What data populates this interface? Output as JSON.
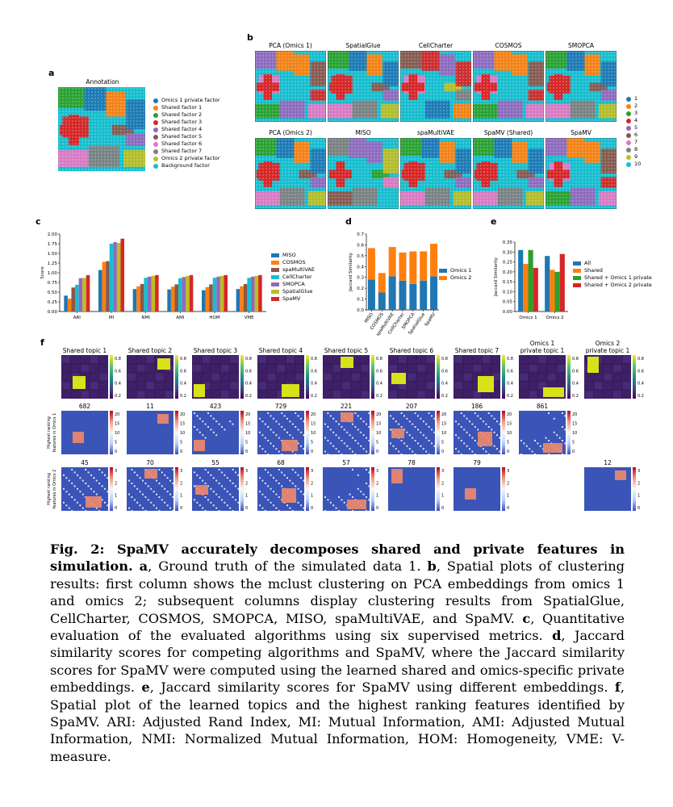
{
  "panel_letters": {
    "a": "a",
    "b": "b",
    "c": "c",
    "d": "d",
    "e": "e",
    "f": "f"
  },
  "panel_a": {
    "title": "Annotation",
    "legend": [
      {
        "label": "Omics 1 private factor",
        "color": "#1f77b4"
      },
      {
        "label": "Shared factor 1",
        "color": "#ff7f0e"
      },
      {
        "label": "Shared factor 2",
        "color": "#2ca02c"
      },
      {
        "label": "Shared factor 3",
        "color": "#d62728"
      },
      {
        "label": "Shared factor 4",
        "color": "#9467bd"
      },
      {
        "label": "Shared factor 5",
        "color": "#8c564b"
      },
      {
        "label": "Shared factor 6",
        "color": "#e377c2"
      },
      {
        "label": "Shared factor 7",
        "color": "#7f7f7f"
      },
      {
        "label": "Omics 2 private factor",
        "color": "#bcbd22"
      },
      {
        "label": "Background factor",
        "color": "#17becf"
      }
    ]
  },
  "panel_b": {
    "row1": [
      "PCA (Omics 1)",
      "SpatialGlue",
      "CellCharter",
      "COSMOS",
      "SMOPCA"
    ],
    "row2": [
      "PCA (Omics 2)",
      "MISO",
      "spaMultiVAE",
      "SpaMV (Shared)",
      "SpaMV"
    ],
    "legend": [
      {
        "label": "1",
        "color": "#1f77b4"
      },
      {
        "label": "2",
        "color": "#ff7f0e"
      },
      {
        "label": "3",
        "color": "#2ca02c"
      },
      {
        "label": "4",
        "color": "#d62728"
      },
      {
        "label": "5",
        "color": "#9467bd"
      },
      {
        "label": "6",
        "color": "#8c564b"
      },
      {
        "label": "7",
        "color": "#e377c2"
      },
      {
        "label": "8",
        "color": "#7f7f7f"
      },
      {
        "label": "9",
        "color": "#bcbd22"
      },
      {
        "label": "10",
        "color": "#17becf"
      }
    ]
  },
  "panel_f": {
    "row1_titles": [
      "Shared topic 1",
      "Shared topic 2",
      "Shared topic 3",
      "Shared topic 4",
      "Shared topic 5",
      "Shared topic 6",
      "Shared topic 7",
      "Omics 1\nprivate topic 1",
      "Omics 2\nprivate topic 1"
    ],
    "row2_titles": [
      "682",
      "11",
      "423",
      "729",
      "221",
      "207",
      "186",
      "861"
    ],
    "row3_titles": [
      "45",
      "70",
      "55",
      "68",
      "57",
      "78",
      "79",
      "12"
    ],
    "row2_ylabel": "Highest ranking\nfeatures in Omics 1",
    "row3_ylabel": "Highest ranking\nfeatures in Omics 2",
    "cb1_ticks": [
      "0.8",
      "0.6",
      "0.4",
      "0.2"
    ],
    "cb2_ticks": [
      "20",
      "15",
      "10",
      "5",
      "0"
    ],
    "cb3_ticks": [
      "3",
      "2",
      "1",
      "0"
    ]
  },
  "chart_data": [
    {
      "id": "c",
      "type": "bar",
      "ylabel": "Score",
      "ylim": [
        0,
        2.0
      ],
      "yticks": [
        "0.00",
        "0.25",
        "0.50",
        "0.75",
        "1.00",
        "1.25",
        "1.50",
        "1.75",
        "2.00"
      ],
      "categories": [
        "ARI",
        "MI",
        "NMI",
        "AMI",
        "HOM",
        "VME"
      ],
      "series": [
        {
          "name": "MISO",
          "color": "#1f77b4",
          "values": [
            0.41,
            1.07,
            0.58,
            0.57,
            0.55,
            0.58
          ]
        },
        {
          "name": "COSMOS",
          "color": "#ff7f0e",
          "values": [
            0.33,
            1.28,
            0.65,
            0.64,
            0.63,
            0.65
          ]
        },
        {
          "name": "spaMultiVAE",
          "color": "#8c564b",
          "values": [
            0.62,
            1.3,
            0.71,
            0.7,
            0.7,
            0.71
          ]
        },
        {
          "name": "CellCharter",
          "color": "#17becf",
          "values": [
            0.69,
            1.75,
            0.87,
            0.86,
            0.87,
            0.87
          ]
        },
        {
          "name": "SMOPCA",
          "color": "#9467bd",
          "values": [
            0.86,
            1.79,
            0.9,
            0.89,
            0.9,
            0.9
          ]
        },
        {
          "name": "SpatialGlue",
          "color": "#bcbd22",
          "values": [
            0.87,
            1.77,
            0.92,
            0.92,
            0.92,
            0.92
          ]
        },
        {
          "name": "SpaMV",
          "color": "#d62728",
          "values": [
            0.94,
            1.88,
            0.94,
            0.94,
            0.94,
            0.94
          ]
        }
      ],
      "legend": "right"
    },
    {
      "id": "d",
      "type": "bar",
      "stacked": true,
      "ylabel": "Jaccard Similarity",
      "ylim": [
        0,
        0.7
      ],
      "yticks": [
        "0.0",
        "0.1",
        "0.2",
        "0.3",
        "0.4",
        "0.5",
        "0.6",
        "0.7"
      ],
      "categories": [
        "MISO",
        "COSMOS",
        "spaMultiVAE",
        "CellCharter",
        "SMOPCA",
        "SpatialGlue",
        "SpaMV"
      ],
      "series": [
        {
          "name": "Omics 1",
          "color": "#1f77b4",
          "values": [
            0.28,
            0.16,
            0.31,
            0.27,
            0.24,
            0.27,
            0.31
          ]
        },
        {
          "name": "Omics 2",
          "color": "#ff7f0e",
          "values": [
            0.29,
            0.18,
            0.27,
            0.26,
            0.3,
            0.27,
            0.3
          ]
        }
      ],
      "legend": "right"
    },
    {
      "id": "e",
      "type": "bar",
      "ylabel": "Jaccard Similarity",
      "ylim": [
        0,
        0.35
      ],
      "yticks": [
        "0.00",
        "0.05",
        "0.10",
        "0.15",
        "0.20",
        "0.25",
        "0.30",
        "0.35"
      ],
      "categories": [
        "Omics 1",
        "Omics 2"
      ],
      "series": [
        {
          "name": "All",
          "color": "#1f77b4",
          "values": [
            0.31,
            0.28
          ]
        },
        {
          "name": "Shared",
          "color": "#ff7f0e",
          "values": [
            0.24,
            0.21
          ]
        },
        {
          "name": "Shared + Omics 1 private",
          "color": "#2ca02c",
          "values": [
            0.31,
            0.2
          ]
        },
        {
          "name": "Shared + Omics 2 private",
          "color": "#d62728",
          "values": [
            0.22,
            0.29
          ]
        }
      ],
      "legend": "right"
    }
  ],
  "caption": {
    "fig": "Fig. 2",
    "headline": ": SpaMV accurately decomposes shared and private features in simulation.",
    "a": "a",
    "a_text": ", Ground truth of the simulated data 1. ",
    "b": "b",
    "b_text": ", Spatial plots of clustering results: first column shows the mclust clustering on PCA embeddings from omics 1 and omics 2; subsequent columns display clustering results from SpatialGlue, CellCharter, COSMOS, SMOPCA, MISO, spaMultiVAE, and SpaMV. ",
    "c": "c",
    "c_text": ", Quantitative evaluation of the evaluated algorithms using six supervised metrics. ",
    "d": "d",
    "d_text": ", Jaccard similarity scores for competing algorithms and SpaMV, where the Jaccard similarity scores for SpaMV were computed using the learned shared and omics-specific private embeddings. ",
    "e": "e",
    "e_text": ", Jaccard similarity scores for SpaMV using different embeddings. ",
    "f": "f",
    "f_text": ", Spatial plot of the learned topics and the highest ranking features identified by SpaMV. ARI: Adjusted Rand Index, MI: Mutual Information, AMI: Adjusted Mutual Information, NMI: Normalized Mutual Information, HOM: Homogeneity, VME: V-measure."
  }
}
